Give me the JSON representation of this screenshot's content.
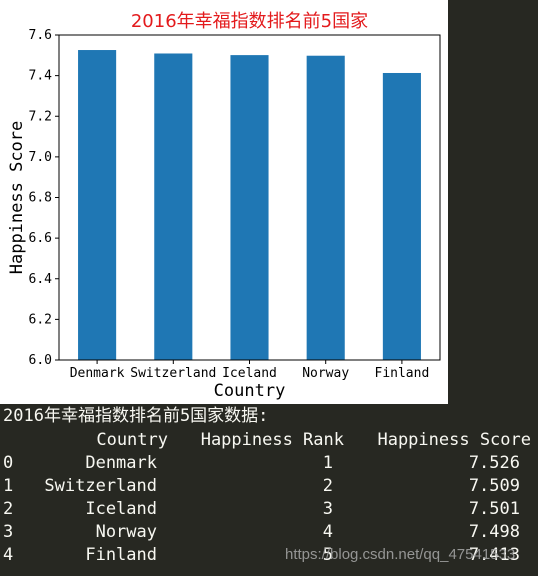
{
  "chart_data": {
    "type": "bar",
    "title": "2016年幸福指数排名前5国家",
    "xlabel": "Country",
    "ylabel": "Happiness Score",
    "categories": [
      "Denmark",
      "Switzerland",
      "Iceland",
      "Norway",
      "Finland"
    ],
    "values": [
      7.526,
      7.509,
      7.501,
      7.498,
      7.413
    ],
    "ylim": [
      6.0,
      7.6
    ],
    "yticks": [
      "6.0",
      "6.2",
      "6.4",
      "6.6",
      "6.8",
      "7.0",
      "7.2",
      "7.4",
      "7.6"
    ],
    "bar_color": "#1f77b4",
    "title_color": "#e31a1c",
    "grid": false
  },
  "console": {
    "caption": "2016年幸福指数排名前5国家数据:",
    "headers": {
      "country": "Country",
      "rank": "Happiness Rank",
      "score": "Happiness Score"
    },
    "rows": [
      {
        "index": "0",
        "country": "Denmark",
        "rank": "1",
        "score": "7.526"
      },
      {
        "index": "1",
        "country": "Switzerland",
        "rank": "2",
        "score": "7.509"
      },
      {
        "index": "2",
        "country": "Iceland",
        "rank": "3",
        "score": "7.501"
      },
      {
        "index": "3",
        "country": "Norway",
        "rank": "4",
        "score": "7.498"
      },
      {
        "index": "4",
        "country": "Finland",
        "rank": "5",
        "score": "7.413"
      }
    ]
  },
  "watermark": "https://blog.csdn.net/qq_47541533"
}
